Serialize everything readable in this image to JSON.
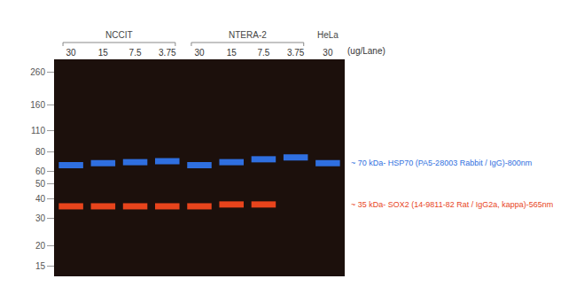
{
  "chart_data": {
    "type": "blot",
    "categories": [
      "30",
      "15",
      "7.5",
      "3.75",
      "30",
      "15",
      "7.5",
      "3.75",
      "30"
    ],
    "x_label": "(ug/Lane)",
    "groups": [
      {
        "name": "NCCIT",
        "count": 4
      },
      {
        "name": "NTERA-2",
        "count": 4
      },
      {
        "name": "HeLa",
        "count": 1
      }
    ],
    "log": "y",
    "ylim": [
      13,
      310
    ],
    "yticks": [
      15,
      20,
      30,
      40,
      50,
      60,
      80,
      110,
      160,
      260
    ],
    "series": [
      {
        "name": "~ 70 kDa- HSP70 (PA5-28003 Rabbit / IgG)-800nm",
        "color": "#2f6fe0",
        "values": [
          66,
          68,
          69,
          70,
          66,
          69,
          72,
          74,
          68
        ]
      },
      {
        "name": "~ 35 kDa- SOX2 (14-9811-82 Rat / IgG2a, kappa)-565nm",
        "color": "#e8441c",
        "values": [
          36,
          36,
          36,
          36,
          36,
          37,
          37,
          null,
          null
        ]
      }
    ]
  }
}
